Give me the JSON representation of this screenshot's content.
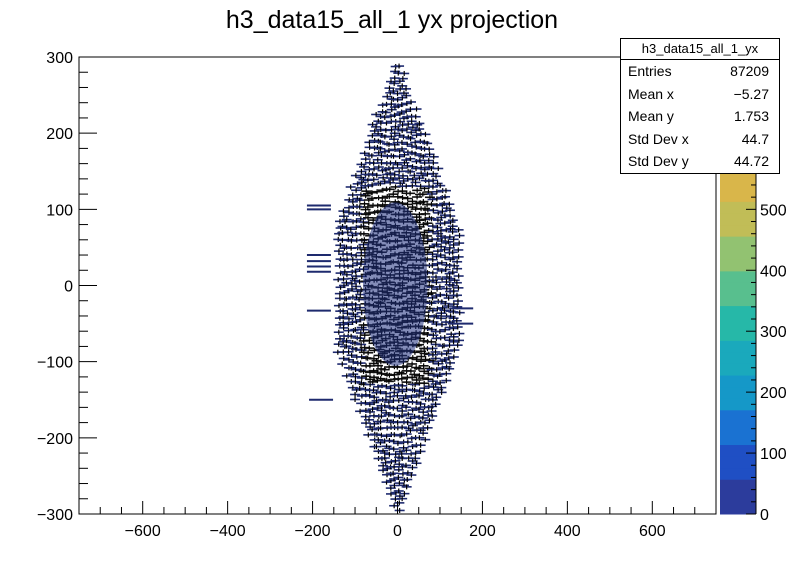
{
  "chart_data": {
    "type": "heatmap",
    "title": "h3_data15_all_1 yx projection",
    "xlabel": "",
    "ylabel": "",
    "xlim": [
      -750,
      750
    ],
    "ylim": [
      -300,
      300
    ],
    "x_ticks": [
      "−600",
      "−400",
      "−200",
      "0",
      "200",
      "400",
      "600"
    ],
    "x_tick_values": [
      -600,
      -400,
      -200,
      0,
      200,
      400,
      600
    ],
    "y_ticks": [
      "−300",
      "−200",
      "−100",
      "0",
      "100",
      "200",
      "300"
    ],
    "y_tick_values": [
      -300,
      -200,
      -100,
      0,
      100,
      200,
      300
    ],
    "z_ticks": [
      "0",
      "100",
      "200",
      "300",
      "400",
      "500"
    ],
    "z_tick_values": [
      0,
      100,
      200,
      300,
      400,
      500
    ],
    "zlim": [
      0,
      750
    ],
    "distribution": {
      "mean_x": -5.27,
      "mean_y": 1.753,
      "std_x": 44.7,
      "std_y": 44.72,
      "x_half_width": 150,
      "y_half_width": 300
    },
    "grid": false,
    "colormap": [
      "#2c3c9c",
      "#1f4fc4",
      "#1a72d2",
      "#1598c8",
      "#1aa9bc",
      "#26b8a8",
      "#58bf8e",
      "#92c271",
      "#c1bd57",
      "#d9b64a"
    ]
  },
  "stats_box": {
    "title": "h3_data15_all_1_yx",
    "rows": [
      {
        "label": "Entries",
        "value": "87209"
      },
      {
        "label": "Mean x",
        "value": "−5.27"
      },
      {
        "label": "Mean y",
        "value": "1.753"
      },
      {
        "label": "Std Dev x",
        "value": "44.7"
      },
      {
        "label": "Std Dev y",
        "value": "44.72"
      }
    ]
  }
}
